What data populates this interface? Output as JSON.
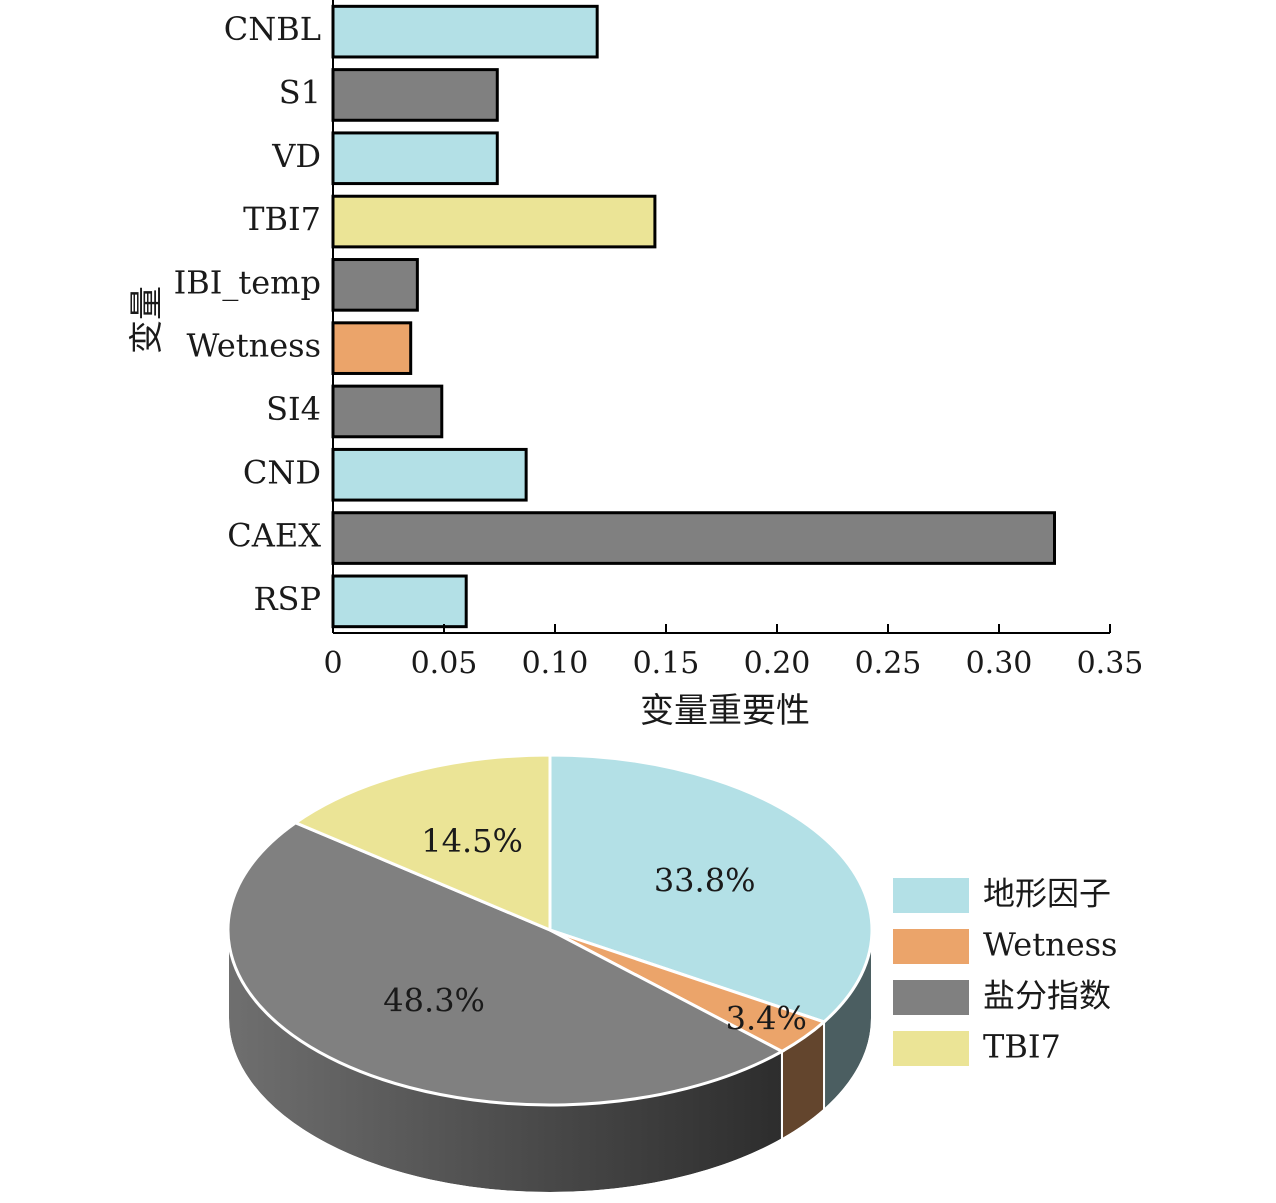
{
  "chart_data": [
    {
      "type": "bar",
      "orientation": "horizontal",
      "title": "",
      "xlabel": "变量重要性",
      "ylabel": "变量",
      "xlim": [
        0,
        0.35
      ],
      "x_ticks": [
        0,
        0.05,
        0.1,
        0.15,
        0.2,
        0.25,
        0.3,
        0.35
      ],
      "x_tick_labels": [
        "0",
        "0.05",
        "0.10",
        "0.15",
        "0.20",
        "0.25",
        "0.30",
        "0.35"
      ],
      "grid": false,
      "categories": [
        "CNBL",
        "S1",
        "VD",
        "TBI7",
        "IBI_temp",
        "Wetness",
        "SI4",
        "CND",
        "CAEX",
        "RSP"
      ],
      "values": [
        0.119,
        0.074,
        0.074,
        0.145,
        0.038,
        0.035,
        0.049,
        0.087,
        0.325,
        0.06
      ],
      "groups": [
        "地形因子",
        "盐分指数",
        "地形因子",
        "TBI7",
        "盐分指数",
        "Wetness",
        "盐分指数",
        "地形因子",
        "盐分指数",
        "地形因子"
      ]
    },
    {
      "type": "pie",
      "style": "3d",
      "title": "",
      "legend_position": "right",
      "categories": [
        "地形因子",
        "Wetness",
        "盐分指数",
        "TBI7"
      ],
      "values": [
        33.8,
        3.4,
        48.3,
        14.5
      ],
      "labels": [
        "33.8%",
        "3.4%",
        "48.3%",
        "14.5%"
      ],
      "colors": [
        "#b3e0e6",
        "#eba46a",
        "#808080",
        "#ebe496"
      ]
    }
  ],
  "colors": {
    "地形因子": "#b3e0e6",
    "Wetness": "#eba46a",
    "盐分指数": "#808080",
    "TBI7": "#ebe496"
  }
}
